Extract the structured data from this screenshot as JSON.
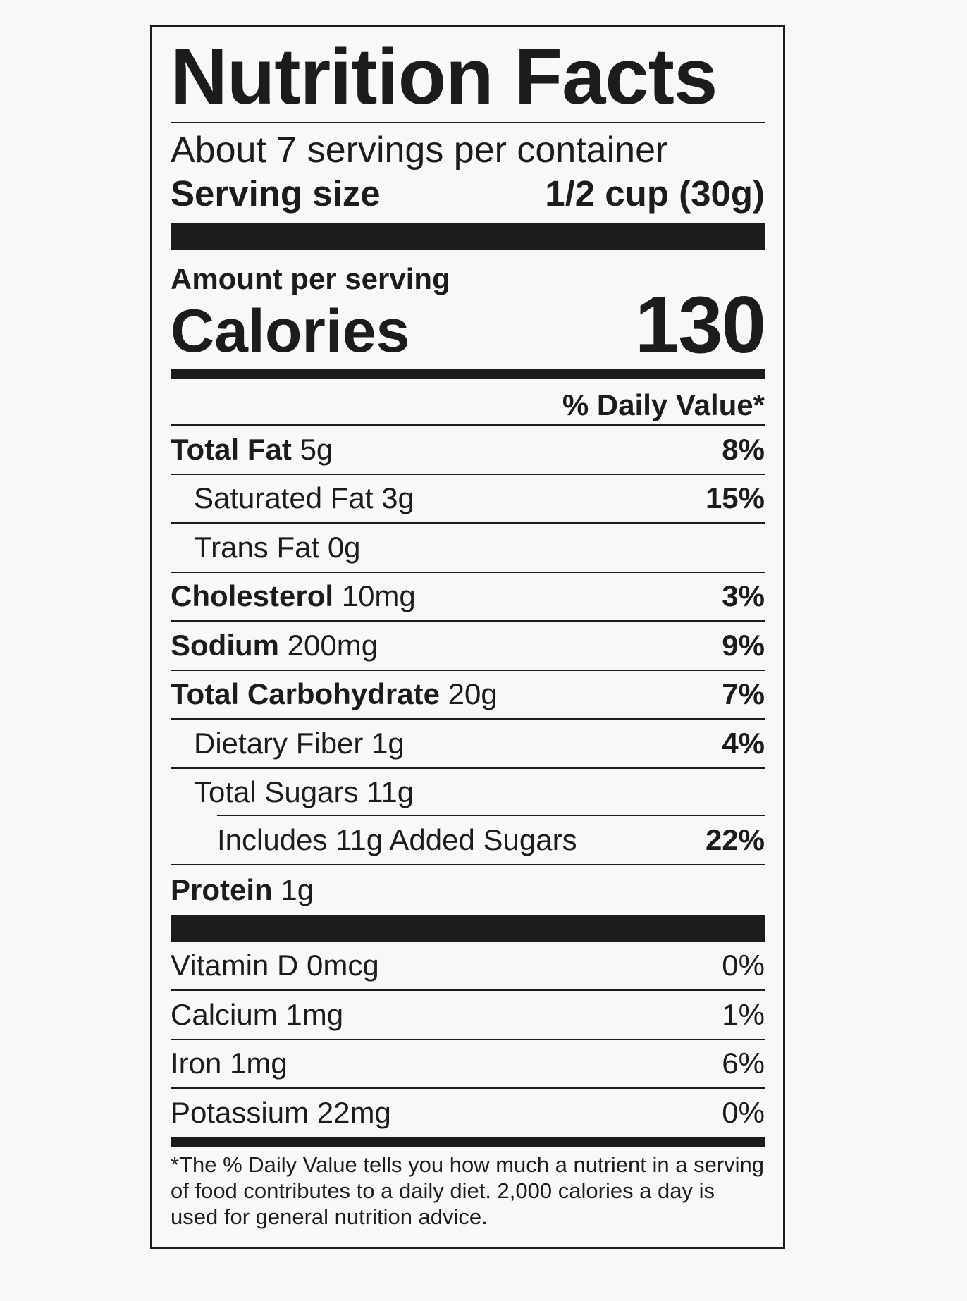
{
  "title": "Nutrition Facts",
  "servings_per_container": "About 7 servings per container",
  "serving_size": {
    "label": "Serving size",
    "value": "1/2 cup (30g)"
  },
  "amount_per_serving": "Amount per serving",
  "calories": {
    "label": "Calories",
    "value": "130"
  },
  "daily_value_header": "% Daily Value*",
  "nutrients": [
    {
      "name": "Total Fat",
      "amount": "5g",
      "dv": "8%"
    },
    {
      "name": "Saturated Fat",
      "amount": "3g",
      "dv": "15%"
    },
    {
      "name": "Trans Fat",
      "amount": "0g",
      "dv": ""
    },
    {
      "name": "Cholesterol",
      "amount": "10mg",
      "dv": "3%"
    },
    {
      "name": "Sodium",
      "amount": "200mg",
      "dv": "9%"
    },
    {
      "name": "Total Carbohydrate",
      "amount": "20g",
      "dv": "7%"
    },
    {
      "name": "Dietary Fiber",
      "amount": "1g",
      "dv": "4%"
    },
    {
      "name": "Total Sugars",
      "amount": "11g",
      "dv": ""
    },
    {
      "name": "Includes 11g Added Sugars",
      "amount": "",
      "dv": "22%"
    },
    {
      "name": "Protein",
      "amount": "1g",
      "dv": ""
    }
  ],
  "vitamins": [
    {
      "name": "Vitamin D",
      "amount": "0mcg",
      "dv": "0%"
    },
    {
      "name": "Calcium",
      "amount": "1mg",
      "dv": "1%"
    },
    {
      "name": "Iron",
      "amount": "1mg",
      "dv": "6%"
    },
    {
      "name": "Potassium",
      "amount": "22mg",
      "dv": "0%"
    }
  ],
  "footnote": "*The % Daily Value tells you how much a nutrient in a serving of food contributes to a daily diet. 2,000 calories a day is used for general nutrition advice."
}
